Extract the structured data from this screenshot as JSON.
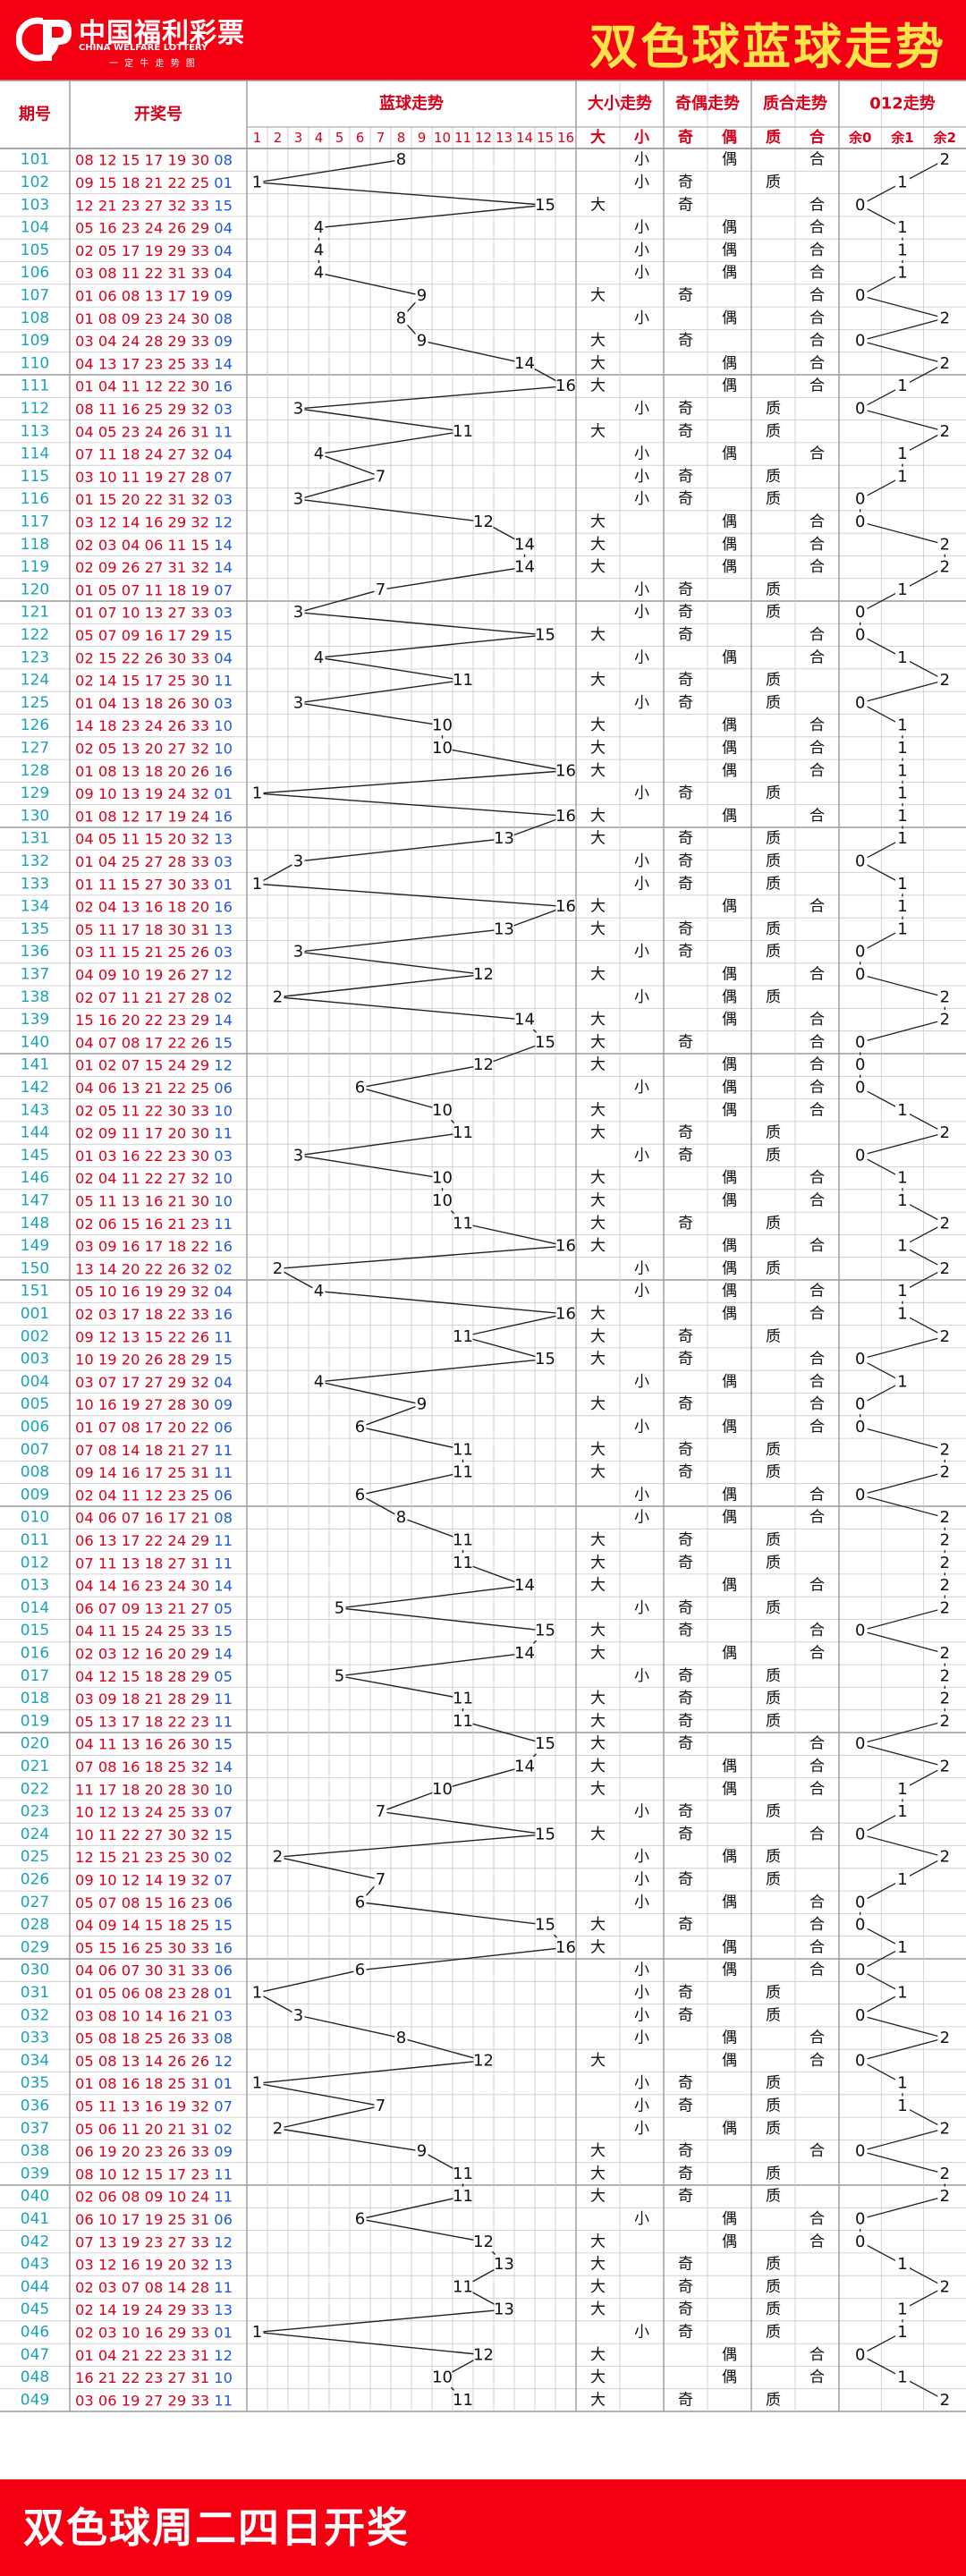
{
  "header": {
    "logo_cn": "中国福利彩票",
    "logo_en": "CHINA WELFARE LOTTERY",
    "logo_tagline": "一 定 牛 走 势 图",
    "title": "双色球蓝球走势"
  },
  "columns": {
    "period": "期号",
    "numbers": "开奖号",
    "blue_trend": "蓝球走势",
    "big_small": "大小走势",
    "odd_even": "奇偶走势",
    "prime_composite": "质合走势",
    "mod3": "012走势"
  },
  "subheaders": {
    "blue": [
      "1",
      "2",
      "3",
      "4",
      "5",
      "6",
      "7",
      "8",
      "9",
      "10",
      "11",
      "12",
      "13",
      "14",
      "15",
      "16"
    ],
    "big_small": [
      "大",
      "小"
    ],
    "odd_even": [
      "奇",
      "偶"
    ],
    "prime_composite": [
      "质",
      "合"
    ],
    "mod3": [
      "余0",
      "余1",
      "余2"
    ]
  },
  "footer": {
    "text": "双色球周二四日开奖"
  },
  "colors": {
    "brand_red": "#f40012",
    "title_yellow": "#ffe34a",
    "period_teal": "#1aa3b3",
    "red_ball": "#d9001b",
    "blue_ball": "#1f5ad6",
    "grid_line": "#c8c8c8",
    "group_line": "#9a9a9a"
  },
  "chart_data": {
    "type": "table",
    "blue_range": [
      1,
      16
    ],
    "rows": [
      {
        "period": "101",
        "reds": "08 12 15 17 19 30",
        "blue": "08"
      },
      {
        "period": "102",
        "reds": "09 15 18 21 22 25",
        "blue": "01"
      },
      {
        "period": "103",
        "reds": "12 21 23 27 32 33",
        "blue": "15"
      },
      {
        "period": "104",
        "reds": "05 16 23 24 26 29",
        "blue": "04"
      },
      {
        "period": "105",
        "reds": "02 05 17 19 29 33",
        "blue": "04"
      },
      {
        "period": "106",
        "reds": "03 08 11 22 31 33",
        "blue": "04"
      },
      {
        "period": "107",
        "reds": "01 06 08 13 17 19",
        "blue": "09"
      },
      {
        "period": "108",
        "reds": "01 08 09 23 24 30",
        "blue": "08"
      },
      {
        "period": "109",
        "reds": "03 04 24 28 29 33",
        "blue": "09"
      },
      {
        "period": "110",
        "reds": "04 13 17 23 25 33",
        "blue": "14"
      },
      {
        "period": "111",
        "reds": "01 04 11 12 22 30",
        "blue": "16"
      },
      {
        "period": "112",
        "reds": "08 11 16 25 29 32",
        "blue": "03"
      },
      {
        "period": "113",
        "reds": "04 05 23 24 26 31",
        "blue": "11"
      },
      {
        "period": "114",
        "reds": "07 11 18 24 27 32",
        "blue": "04"
      },
      {
        "period": "115",
        "reds": "03 10 11 19 27 28",
        "blue": "07"
      },
      {
        "period": "116",
        "reds": "01 15 20 22 31 32",
        "blue": "03"
      },
      {
        "period": "117",
        "reds": "03 12 14 16 29 32",
        "blue": "12"
      },
      {
        "period": "118",
        "reds": "02 03 04 06 11 15",
        "blue": "14"
      },
      {
        "period": "119",
        "reds": "02 09 26 27 31 32",
        "blue": "14"
      },
      {
        "period": "120",
        "reds": "01 05 07 11 18 19",
        "blue": "07"
      },
      {
        "period": "121",
        "reds": "01 07 10 13 27 33",
        "blue": "03"
      },
      {
        "period": "122",
        "reds": "05 07 09 16 17 29",
        "blue": "15"
      },
      {
        "period": "123",
        "reds": "02 15 22 26 30 33",
        "blue": "04"
      },
      {
        "period": "124",
        "reds": "02 14 15 17 25 30",
        "blue": "11"
      },
      {
        "period": "125",
        "reds": "01 04 13 18 26 30",
        "blue": "03"
      },
      {
        "period": "126",
        "reds": "14 18 23 24 26 33",
        "blue": "10"
      },
      {
        "period": "127",
        "reds": "02 05 13 20 27 32",
        "blue": "10"
      },
      {
        "period": "128",
        "reds": "01 08 13 18 20 26",
        "blue": "16"
      },
      {
        "period": "129",
        "reds": "09 10 13 19 24 32",
        "blue": "01"
      },
      {
        "period": "130",
        "reds": "01 08 12 17 19 24",
        "blue": "16"
      },
      {
        "period": "131",
        "reds": "04 05 11 15 20 32",
        "blue": "13"
      },
      {
        "period": "132",
        "reds": "01 04 25 27 28 33",
        "blue": "03"
      },
      {
        "period": "133",
        "reds": "01 11 15 27 30 33",
        "blue": "01"
      },
      {
        "period": "134",
        "reds": "02 04 13 16 18 20",
        "blue": "16"
      },
      {
        "period": "135",
        "reds": "05 11 17 18 30 31",
        "blue": "13"
      },
      {
        "period": "136",
        "reds": "03 11 15 21 25 26",
        "blue": "03"
      },
      {
        "period": "137",
        "reds": "04 09 10 19 26 27",
        "blue": "12"
      },
      {
        "period": "138",
        "reds": "02 07 11 21 27 28",
        "blue": "02"
      },
      {
        "period": "139",
        "reds": "15 16 20 22 23 29",
        "blue": "14"
      },
      {
        "period": "140",
        "reds": "04 07 08 17 22 26",
        "blue": "15"
      },
      {
        "period": "141",
        "reds": "01 02 07 15 24 29",
        "blue": "12"
      },
      {
        "period": "142",
        "reds": "04 06 13 21 22 25",
        "blue": "06"
      },
      {
        "period": "143",
        "reds": "02 05 11 22 30 33",
        "blue": "10"
      },
      {
        "period": "144",
        "reds": "02 09 11 17 20 30",
        "blue": "11"
      },
      {
        "period": "145",
        "reds": "01 03 16 22 23 30",
        "blue": "03"
      },
      {
        "period": "146",
        "reds": "02 04 11 22 27 32",
        "blue": "10"
      },
      {
        "period": "147",
        "reds": "05 11 13 16 21 30",
        "blue": "10"
      },
      {
        "period": "148",
        "reds": "02 06 15 16 21 23",
        "blue": "11"
      },
      {
        "period": "149",
        "reds": "03 09 16 17 18 22",
        "blue": "16"
      },
      {
        "period": "150",
        "reds": "13 14 20 22 26 32",
        "blue": "02"
      },
      {
        "period": "151",
        "reds": "05 10 16 19 29 32",
        "blue": "04"
      },
      {
        "period": "001",
        "reds": "02 03 17 18 22 33",
        "blue": "16"
      },
      {
        "period": "002",
        "reds": "09 12 13 15 22 26",
        "blue": "11"
      },
      {
        "period": "003",
        "reds": "10 19 20 26 28 29",
        "blue": "15"
      },
      {
        "period": "004",
        "reds": "03 07 17 27 29 32",
        "blue": "04"
      },
      {
        "period": "005",
        "reds": "10 16 19 27 28 30",
        "blue": "09"
      },
      {
        "period": "006",
        "reds": "01 07 08 17 20 22",
        "blue": "06"
      },
      {
        "period": "007",
        "reds": "07 08 14 18 21 27",
        "blue": "11"
      },
      {
        "period": "008",
        "reds": "09 14 16 17 25 31",
        "blue": "11"
      },
      {
        "period": "009",
        "reds": "02 04 11 12 23 25",
        "blue": "06"
      },
      {
        "period": "010",
        "reds": "04 06 07 16 17 21",
        "blue": "08"
      },
      {
        "period": "011",
        "reds": "06 13 17 22 24 29",
        "blue": "11"
      },
      {
        "period": "012",
        "reds": "07 11 13 18 27 31",
        "blue": "11"
      },
      {
        "period": "013",
        "reds": "04 14 16 23 24 30",
        "blue": "14"
      },
      {
        "period": "014",
        "reds": "06 07 09 13 21 27",
        "blue": "05"
      },
      {
        "period": "015",
        "reds": "04 11 15 24 25 33",
        "blue": "15"
      },
      {
        "period": "016",
        "reds": "02 03 12 16 20 29",
        "blue": "14"
      },
      {
        "period": "017",
        "reds": "04 12 15 18 28 29",
        "blue": "05"
      },
      {
        "period": "018",
        "reds": "03 09 18 21 28 29",
        "blue": "11"
      },
      {
        "period": "019",
        "reds": "05 13 17 18 22 23",
        "blue": "11"
      },
      {
        "period": "020",
        "reds": "04 11 13 16 26 30",
        "blue": "15"
      },
      {
        "period": "021",
        "reds": "07 08 16 18 25 32",
        "blue": "14"
      },
      {
        "period": "022",
        "reds": "11 17 18 20 28 30",
        "blue": "10"
      },
      {
        "period": "023",
        "reds": "10 12 13 24 25 33",
        "blue": "07"
      },
      {
        "period": "024",
        "reds": "10 11 22 27 30 32",
        "blue": "15"
      },
      {
        "period": "025",
        "reds": "12 15 21 23 25 30",
        "blue": "02"
      },
      {
        "period": "026",
        "reds": "09 10 12 14 19 32",
        "blue": "07"
      },
      {
        "period": "027",
        "reds": "05 07 08 15 16 23",
        "blue": "06"
      },
      {
        "period": "028",
        "reds": "04 09 14 15 18 25",
        "blue": "15"
      },
      {
        "period": "029",
        "reds": "05 15 16 25 30 33",
        "blue": "16"
      },
      {
        "period": "030",
        "reds": "04 06 07 30 31 33",
        "blue": "06"
      },
      {
        "period": "031",
        "reds": "01 05 06 08 23 28",
        "blue": "01"
      },
      {
        "period": "032",
        "reds": "03 08 10 14 16 21",
        "blue": "03"
      },
      {
        "period": "033",
        "reds": "05 08 18 25 26 33",
        "blue": "08"
      },
      {
        "period": "034",
        "reds": "05 08 13 14 26 26",
        "blue": "12"
      },
      {
        "period": "035",
        "reds": "01 08 16 18 25 31",
        "blue": "01"
      },
      {
        "period": "036",
        "reds": "05 11 13 16 19 32",
        "blue": "07"
      },
      {
        "period": "037",
        "reds": "05 06 11 20 21 31",
        "blue": "02"
      },
      {
        "period": "038",
        "reds": "06 19 20 23 26 33",
        "blue": "09"
      },
      {
        "period": "039",
        "reds": "08 10 12 15 17 23",
        "blue": "11"
      },
      {
        "period": "040",
        "reds": "02 06 08 09 10 24",
        "blue": "11"
      },
      {
        "period": "041",
        "reds": "06 10 17 19 25 31",
        "blue": "06"
      },
      {
        "period": "042",
        "reds": "07 13 19 23 27 33",
        "blue": "12"
      },
      {
        "period": "043",
        "reds": "03 12 16 19 20 32",
        "blue": "13"
      },
      {
        "period": "044",
        "reds": "02 03 07 08 14 28",
        "blue": "11"
      },
      {
        "period": "045",
        "reds": "02 14 19 24 29 33",
        "blue": "13"
      },
      {
        "period": "046",
        "reds": "02 03 10 16 29 33",
        "blue": "01"
      },
      {
        "period": "047",
        "reds": "01 04 21 22 23 31",
        "blue": "12"
      },
      {
        "period": "048",
        "reds": "16 21 22 23 27 31",
        "blue": "10"
      },
      {
        "period": "049",
        "reds": "03 06 19 27 29 33",
        "blue": "11"
      }
    ]
  }
}
